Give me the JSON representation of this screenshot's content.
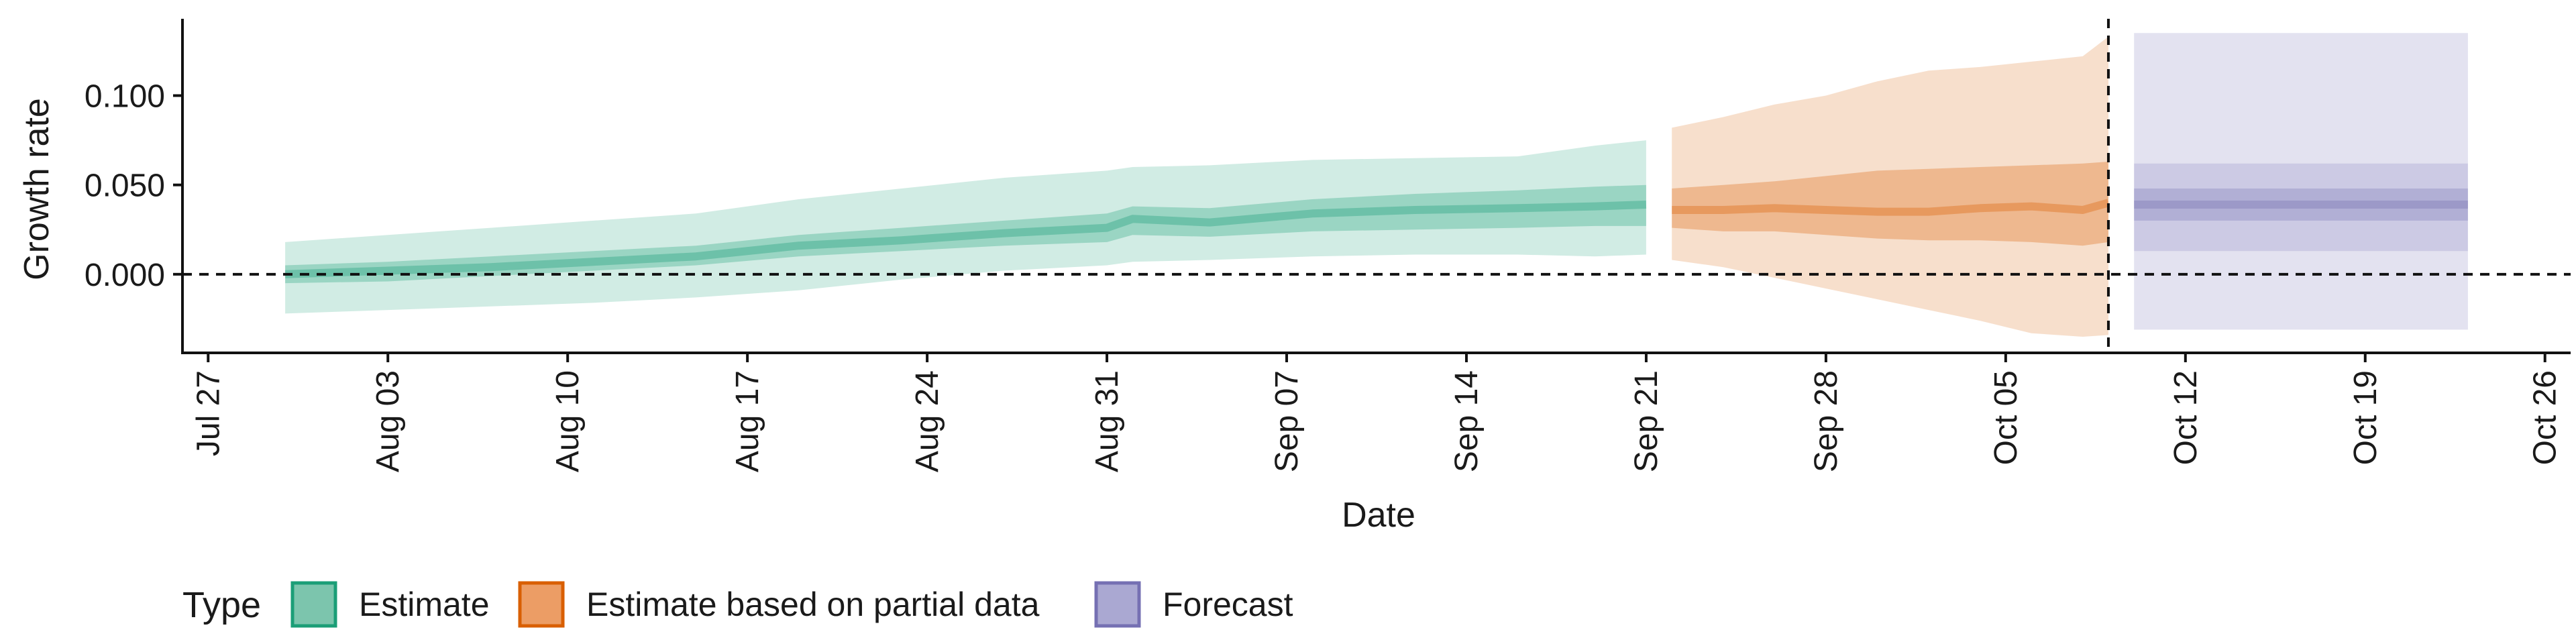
{
  "chart_data": {
    "type": "area",
    "xlabel": "Date",
    "ylabel": "Growth rate",
    "xlim": [
      "2020-07-26",
      "2020-10-27"
    ],
    "ylim": [
      -0.044,
      0.143
    ],
    "x_ticks": [
      "2020-07-27",
      "2020-08-03",
      "2020-08-10",
      "2020-08-17",
      "2020-08-24",
      "2020-08-31",
      "2020-09-07",
      "2020-09-14",
      "2020-09-21",
      "2020-09-28",
      "2020-10-05",
      "2020-10-12",
      "2020-10-19",
      "2020-10-26"
    ],
    "x_tick_labels": [
      "Jul 27",
      "Aug 03",
      "Aug 10",
      "Aug 17",
      "Aug 24",
      "Aug 31",
      "Sep 07",
      "Sep 14",
      "Sep 21",
      "Sep 28",
      "Oct 05",
      "Oct 12",
      "Oct 19",
      "Oct 26"
    ],
    "y_ticks": [
      0.0,
      0.05,
      0.1
    ],
    "y_tick_labels": [
      "0.000",
      "0.050",
      "0.100"
    ],
    "reference_lines": {
      "horizontal_y": 0.0,
      "vertical_date": "2020-10-09"
    },
    "legend": {
      "title": "Type",
      "position": "bottom",
      "items": [
        {
          "label": "Estimate",
          "fill": "#7cc5ad",
          "border": "#1b9e77"
        },
        {
          "label": "Estimate based on partial data",
          "fill": "#ec9d65",
          "border": "#d95f02"
        },
        {
          "label": "Forecast",
          "fill": "#aaa8d2",
          "border": "#7570b3"
        }
      ]
    },
    "series": [
      {
        "name": "Estimate",
        "color": "#1b9e77",
        "x": [
          "2020-07-30",
          "2020-08-03",
          "2020-08-07",
          "2020-08-11",
          "2020-08-15",
          "2020-08-19",
          "2020-08-23",
          "2020-08-27",
          "2020-08-31",
          "2020-09-01",
          "2020-09-04",
          "2020-09-08",
          "2020-09-12",
          "2020-09-16",
          "2020-09-19",
          "2020-09-21"
        ],
        "median": [
          0.0,
          0.002,
          0.004,
          0.007,
          0.01,
          0.016,
          0.019,
          0.023,
          0.026,
          0.031,
          0.029,
          0.034,
          0.036,
          0.037,
          0.038,
          0.039
        ],
        "lower50": [
          -0.005,
          -0.004,
          -0.001,
          0.002,
          0.005,
          0.01,
          0.013,
          0.016,
          0.018,
          0.022,
          0.021,
          0.024,
          0.025,
          0.026,
          0.027,
          0.027
        ],
        "upper50": [
          0.005,
          0.007,
          0.01,
          0.013,
          0.016,
          0.022,
          0.026,
          0.03,
          0.034,
          0.038,
          0.037,
          0.042,
          0.045,
          0.047,
          0.049,
          0.05
        ],
        "lower90": [
          -0.022,
          -0.02,
          -0.018,
          -0.016,
          -0.013,
          -0.009,
          -0.003,
          0.002,
          0.005,
          0.007,
          0.008,
          0.01,
          0.011,
          0.011,
          0.01,
          0.011
        ],
        "upper90": [
          0.018,
          0.022,
          0.026,
          0.03,
          0.034,
          0.042,
          0.048,
          0.054,
          0.058,
          0.06,
          0.061,
          0.064,
          0.065,
          0.066,
          0.072,
          0.075
        ]
      },
      {
        "name": "Estimate based on partial data",
        "color": "#d95f02",
        "x": [
          "2020-09-22",
          "2020-09-24",
          "2020-09-26",
          "2020-09-28",
          "2020-09-30",
          "2020-10-02",
          "2020-10-04",
          "2020-10-06",
          "2020-10-08",
          "2020-10-09"
        ],
        "median": [
          0.036,
          0.036,
          0.037,
          0.036,
          0.035,
          0.035,
          0.037,
          0.038,
          0.036,
          0.04
        ],
        "lower50": [
          0.026,
          0.024,
          0.024,
          0.022,
          0.02,
          0.019,
          0.019,
          0.018,
          0.016,
          0.018
        ],
        "upper50": [
          0.048,
          0.05,
          0.052,
          0.055,
          0.058,
          0.059,
          0.06,
          0.061,
          0.062,
          0.063
        ],
        "lower90": [
          0.008,
          0.004,
          -0.002,
          -0.008,
          -0.014,
          -0.02,
          -0.026,
          -0.033,
          -0.035,
          -0.034
        ],
        "upper90": [
          0.082,
          0.088,
          0.095,
          0.1,
          0.108,
          0.114,
          0.116,
          0.119,
          0.122,
          0.133
        ]
      },
      {
        "name": "Forecast",
        "color": "#7570b3",
        "x": [
          "2020-10-10",
          "2020-10-23"
        ],
        "median": [
          0.039,
          0.039
        ],
        "lower50": [
          0.03,
          0.03
        ],
        "upper50": [
          0.048,
          0.048
        ],
        "lower90": [
          0.013,
          0.013
        ],
        "upper90": [
          0.062,
          0.062
        ],
        "lower95": [
          -0.031,
          -0.031
        ],
        "upper95": [
          0.135,
          0.135
        ]
      }
    ]
  }
}
